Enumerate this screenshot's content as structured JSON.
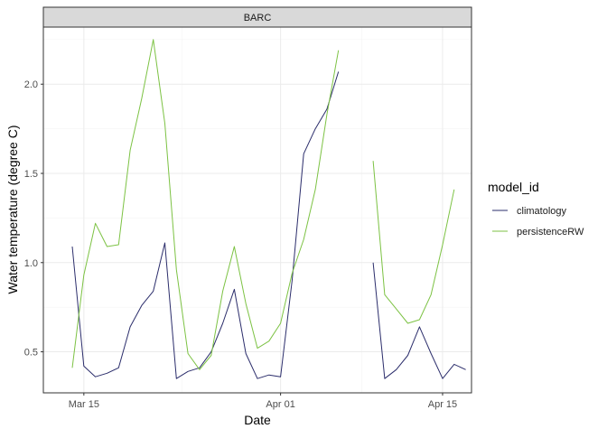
{
  "chart_data": {
    "type": "line",
    "facet_label": "BARC",
    "xlabel": "Date",
    "ylabel": "Water temperature (degree C)",
    "x_ticks": [
      {
        "date": "2023-03-15",
        "label": "Mar 15"
      },
      {
        "date": "2023-04-01",
        "label": "Apr 01"
      },
      {
        "date": "2023-04-15",
        "label": "Apr 15"
      }
    ],
    "y_ticks": [
      0.5,
      1.0,
      1.5,
      2.0
    ],
    "y_tick_labels": [
      "0.5",
      "1.0",
      "1.5",
      "2.0"
    ],
    "xlim": [
      "2023-03-12",
      "2023-04-17"
    ],
    "ylim": [
      0.27,
      2.32
    ],
    "grid": true,
    "legend": {
      "title": "model_id",
      "position": "right"
    },
    "series": [
      {
        "name": "climatology",
        "color": "#2b2d6b",
        "segments": [
          [
            {
              "x": "2023-03-14",
              "y": 1.09
            },
            {
              "x": "2023-03-15",
              "y": 0.42
            },
            {
              "x": "2023-03-16",
              "y": 0.36
            },
            {
              "x": "2023-03-17",
              "y": 0.38
            },
            {
              "x": "2023-03-18",
              "y": 0.41
            },
            {
              "x": "2023-03-19",
              "y": 0.64
            },
            {
              "x": "2023-03-20",
              "y": 0.76
            },
            {
              "x": "2023-03-21",
              "y": 0.84
            },
            {
              "x": "2023-03-22",
              "y": 1.11
            },
            {
              "x": "2023-03-23",
              "y": 0.35
            },
            {
              "x": "2023-03-24",
              "y": 0.39
            },
            {
              "x": "2023-03-25",
              "y": 0.41
            },
            {
              "x": "2023-03-26",
              "y": 0.5
            },
            {
              "x": "2023-03-27",
              "y": 0.66
            },
            {
              "x": "2023-03-28",
              "y": 0.85
            },
            {
              "x": "2023-03-29",
              "y": 0.49
            },
            {
              "x": "2023-03-30",
              "y": 0.35
            },
            {
              "x": "2023-03-31",
              "y": 0.37
            },
            {
              "x": "2023-04-01",
              "y": 0.36
            },
            {
              "x": "2023-04-02",
              "y": 0.9
            },
            {
              "x": "2023-04-03",
              "y": 1.61
            },
            {
              "x": "2023-04-04",
              "y": 1.75
            },
            {
              "x": "2023-04-05",
              "y": 1.86
            },
            {
              "x": "2023-04-06",
              "y": 2.07
            }
          ],
          [
            {
              "x": "2023-04-09",
              "y": 1.0
            },
            {
              "x": "2023-04-10",
              "y": 0.35
            },
            {
              "x": "2023-04-11",
              "y": 0.4
            },
            {
              "x": "2023-04-12",
              "y": 0.48
            },
            {
              "x": "2023-04-13",
              "y": 0.64
            },
            {
              "x": "2023-04-14",
              "y": 0.49
            },
            {
              "x": "2023-04-15",
              "y": 0.35
            },
            {
              "x": "2023-04-16",
              "y": 0.43
            },
            {
              "x": "2023-04-17",
              "y": 0.4
            }
          ]
        ]
      },
      {
        "name": "persistenceRW",
        "color": "#7cc243",
        "segments": [
          [
            {
              "x": "2023-03-14",
              "y": 0.41
            },
            {
              "x": "2023-03-15",
              "y": 0.93
            },
            {
              "x": "2023-03-16",
              "y": 1.22
            },
            {
              "x": "2023-03-17",
              "y": 1.09
            },
            {
              "x": "2023-03-18",
              "y": 1.1
            },
            {
              "x": "2023-03-19",
              "y": 1.63
            },
            {
              "x": "2023-03-20",
              "y": 1.92
            },
            {
              "x": "2023-03-21",
              "y": 2.25
            },
            {
              "x": "2023-03-22",
              "y": 1.78
            },
            {
              "x": "2023-03-23",
              "y": 0.96
            },
            {
              "x": "2023-03-24",
              "y": 0.49
            },
            {
              "x": "2023-03-25",
              "y": 0.4
            },
            {
              "x": "2023-03-26",
              "y": 0.48
            },
            {
              "x": "2023-03-27",
              "y": 0.84
            },
            {
              "x": "2023-03-28",
              "y": 1.09
            },
            {
              "x": "2023-03-29",
              "y": 0.77
            },
            {
              "x": "2023-03-30",
              "y": 0.52
            },
            {
              "x": "2023-03-31",
              "y": 0.56
            },
            {
              "x": "2023-04-01",
              "y": 0.66
            },
            {
              "x": "2023-04-02",
              "y": 0.94
            },
            {
              "x": "2023-04-03",
              "y": 1.13
            },
            {
              "x": "2023-04-04",
              "y": 1.41
            },
            {
              "x": "2023-04-05",
              "y": 1.83
            },
            {
              "x": "2023-04-06",
              "y": 2.19
            }
          ],
          [
            {
              "x": "2023-04-09",
              "y": 1.57
            },
            {
              "x": "2023-04-10",
              "y": 0.82
            },
            {
              "x": "2023-04-11",
              "y": 0.74
            },
            {
              "x": "2023-04-12",
              "y": 0.66
            },
            {
              "x": "2023-04-13",
              "y": 0.68
            },
            {
              "x": "2023-04-14",
              "y": 0.82
            },
            {
              "x": "2023-04-15",
              "y": 1.1
            },
            {
              "x": "2023-04-16",
              "y": 1.41
            }
          ]
        ]
      }
    ]
  }
}
